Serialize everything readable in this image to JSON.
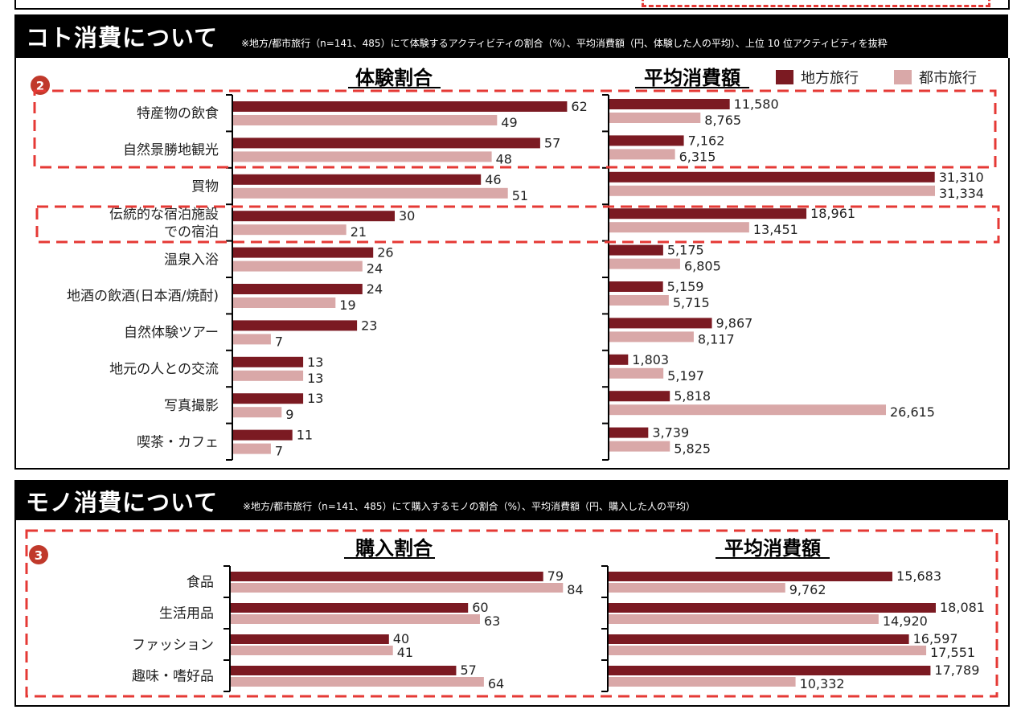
{
  "colors": {
    "local": "#7b1a22",
    "city": "#d9a8a8",
    "highlight": "#e53935",
    "header_bg": "#000000"
  },
  "legend": {
    "local": "地方旅行",
    "city": "都市旅行"
  },
  "koto": {
    "header_title": "コト消費について",
    "header_note": "※地方/都市旅行（n=141、485）にて体験するアクティビティの割合（%）、平均消費額（円、体験した人の平均）、上位 10 位アクティビティを抜粋",
    "badge": "2",
    "left_title": "体験割合",
    "right_title": "平均消費額"
  },
  "mono": {
    "header_title": "モノ消費について",
    "header_note": "※地方/都市旅行（n=141、485）にて購入するモノの割合（%）、平均消費額（円、購入した人の平均）",
    "badge": "3",
    "left_title": "購入割合",
    "right_title": "平均消費額"
  },
  "chart_data": [
    {
      "type": "bar",
      "title": "体験割合",
      "categories": [
        "特産物の飲食",
        "自然景勝地観光",
        "買物",
        "伝統的な宿泊施設での宿泊",
        "温泉入浴",
        "地酒の飲酒(日本酒/焼酎)",
        "自然体験ツアー",
        "地元の人との交流",
        "写真撮影",
        "喫茶・カフェ"
      ],
      "category_lines": [
        [
          "特産物の飲食"
        ],
        [
          "自然景勝地観光"
        ],
        [
          "買物"
        ],
        [
          "伝統的な宿泊施設",
          "での宿泊"
        ],
        [
          "温泉入浴"
        ],
        [
          "地酒の飲酒(日本酒/焼酎)"
        ],
        [
          "自然体験ツアー"
        ],
        [
          "地元の人との交流"
        ],
        [
          "写真撮影"
        ],
        [
          "喫茶・カフェ"
        ]
      ],
      "series": [
        {
          "name": "地方旅行",
          "values": [
            62,
            57,
            46,
            30,
            26,
            24,
            23,
            13,
            13,
            11
          ]
        },
        {
          "name": "都市旅行",
          "values": [
            49,
            48,
            51,
            21,
            24,
            19,
            7,
            13,
            9,
            7
          ]
        }
      ],
      "labels": [
        [
          "62",
          "57",
          "46",
          "30",
          "26",
          "24",
          "23",
          "13",
          "13",
          "11"
        ],
        [
          "49",
          "48",
          "51",
          "21",
          "24",
          "19",
          "7",
          "13",
          "9",
          "7"
        ]
      ],
      "orientation": "horizontal"
    },
    {
      "type": "bar",
      "title": "平均消費額",
      "categories": [
        "特産物の飲食",
        "自然景勝地観光",
        "買物",
        "伝統的な宿泊施設での宿泊",
        "温泉入浴",
        "地酒の飲酒(日本酒/焼酎)",
        "自然体験ツアー",
        "地元の人との交流",
        "写真撮影",
        "喫茶・カフェ"
      ],
      "series": [
        {
          "name": "地方旅行",
          "values": [
            11580,
            7162,
            31310,
            18961,
            5175,
            5159,
            9867,
            1803,
            5818,
            3739
          ]
        },
        {
          "name": "都市旅行",
          "values": [
            8765,
            6315,
            31334,
            13451,
            6805,
            5715,
            8117,
            5197,
            26615,
            5825
          ]
        }
      ],
      "labels": [
        [
          "11,580",
          "7,162",
          "31,310",
          "18,961",
          "5,175",
          "5,159",
          "9,867",
          "1,803",
          "5,818",
          "3,739"
        ],
        [
          "8,765",
          "6,315",
          "31,334",
          "13,451",
          "6,805",
          "5,715",
          "8,117",
          "5,197",
          "26,615",
          "5,825"
        ]
      ],
      "orientation": "horizontal"
    },
    {
      "type": "bar",
      "title": "購入割合",
      "categories": [
        "食品",
        "生活用品",
        "ファッション",
        "趣味・嗜好品"
      ],
      "series": [
        {
          "name": "地方旅行",
          "values": [
            79,
            60,
            40,
            57
          ]
        },
        {
          "name": "都市旅行",
          "values": [
            84,
            63,
            41,
            64
          ]
        }
      ],
      "labels": [
        [
          "79",
          "60",
          "40",
          "57"
        ],
        [
          "84",
          "63",
          "41",
          "64"
        ]
      ],
      "orientation": "horizontal"
    },
    {
      "type": "bar",
      "title": "平均消費額",
      "categories": [
        "食品",
        "生活用品",
        "ファッション",
        "趣味・嗜好品"
      ],
      "series": [
        {
          "name": "地方旅行",
          "values": [
            15683,
            18081,
            16597,
            17789
          ]
        },
        {
          "name": "都市旅行",
          "values": [
            9762,
            14920,
            17551,
            10332
          ]
        }
      ],
      "labels": [
        [
          "15,683",
          "18,081",
          "16,597",
          "17,789"
        ],
        [
          "9,762",
          "14,920",
          "17,551",
          "10,332"
        ]
      ],
      "orientation": "horizontal"
    }
  ]
}
